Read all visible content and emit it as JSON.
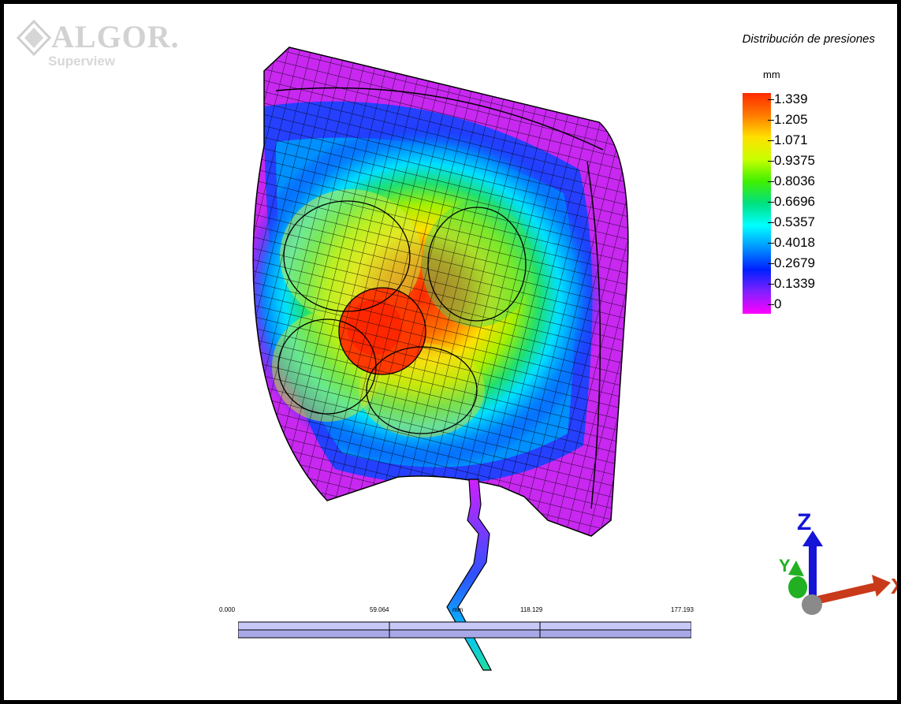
{
  "logo": {
    "brand": "ALGOR.",
    "subtitle": "Superview"
  },
  "legend": {
    "title": "Distribución de presiones",
    "unit": "mm",
    "values": [
      "1.339",
      "1.205",
      "1.071",
      "0.9375",
      "0.8036",
      "0.6696",
      "0.5357",
      "0.4018",
      "0.2679",
      "0.1339",
      "0"
    ],
    "gradient_colors": [
      "#ff2a00",
      "#ff7a00",
      "#ffe000",
      "#c8ff00",
      "#40f000",
      "#00e080",
      "#00ffff",
      "#0095ff",
      "#0020ff",
      "#8020ff",
      "#ff00ff"
    ]
  },
  "axes": {
    "z": "Z",
    "x": "X",
    "y": "Y"
  },
  "scale_bar": {
    "ticks": [
      "0.000",
      "59.064",
      "118.129",
      "177.193"
    ],
    "unit": "mm"
  },
  "colors": {
    "z_axis": "#1515d8",
    "x_axis": "#c83a1a",
    "y_axis": "#22b022"
  }
}
